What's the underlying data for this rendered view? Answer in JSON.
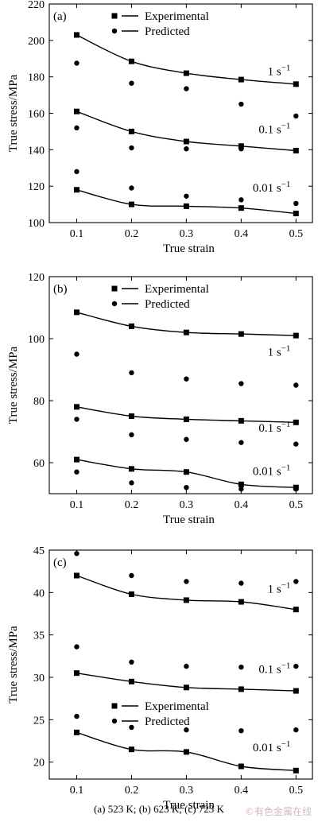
{
  "caption": "(a) 523 K; (b) 623 K; (c) 723 K",
  "watermark": "©有色金属在线",
  "colors": {
    "ink": "#000000",
    "background": "#ffffff"
  },
  "chart_data": [
    {
      "type": "line",
      "panel_label": "(a)",
      "xlabel": "True strain",
      "ylabel": "True stress/MPa",
      "x": [
        0.1,
        0.2,
        0.3,
        0.4,
        0.5
      ],
      "xticks": [
        "0.1",
        "0.2",
        "0.3",
        "0.4",
        "0.5"
      ],
      "xlim": [
        0.05,
        0.53
      ],
      "ylim": [
        100,
        220
      ],
      "yticks": [
        100,
        120,
        140,
        160,
        180,
        200,
        220
      ],
      "legend": {
        "placement": "top-center",
        "entries": [
          "Experimental",
          "Predicted"
        ]
      },
      "rate_labels": [
        {
          "label": "1 s",
          "sup": "−1",
          "anchor": [
            0.49,
            181
          ]
        },
        {
          "label": "0.1 s",
          "sup": "−1",
          "anchor": [
            0.49,
            149
          ]
        },
        {
          "label": "0.01 s",
          "sup": "−1",
          "anchor": [
            0.49,
            117
          ]
        }
      ],
      "groups": [
        {
          "rate": "1 s−1",
          "experimental": [
            203,
            188.5,
            182,
            178.5,
            176
          ],
          "predicted": [
            187.5,
            176.5,
            173.5,
            165,
            158.5
          ]
        },
        {
          "rate": "0.1 s−1",
          "experimental": [
            161,
            150,
            144.5,
            142,
            139.5
          ],
          "predicted": [
            152,
            141,
            140.5,
            140.5,
            139.5
          ]
        },
        {
          "rate": "0.01 s−1",
          "experimental": [
            118,
            110,
            109,
            108,
            105
          ],
          "predicted": [
            128,
            119,
            114.5,
            112.5,
            110.5
          ]
        }
      ]
    },
    {
      "type": "line",
      "panel_label": "(b)",
      "xlabel": "True strain",
      "ylabel": "True stress/MPa",
      "x": [
        0.1,
        0.2,
        0.3,
        0.4,
        0.5
      ],
      "xticks": [
        "0.1",
        "0.2",
        "0.3",
        "0.4",
        "0.5"
      ],
      "xlim": [
        0.05,
        0.53
      ],
      "ylim": [
        50,
        120
      ],
      "yticks": [
        60,
        80,
        100,
        120
      ],
      "legend": {
        "placement": "top-center",
        "entries": [
          "Experimental",
          "Predicted"
        ]
      },
      "rate_labels": [
        {
          "label": "1 s",
          "sup": "−1",
          "anchor": [
            0.49,
            94.5
          ]
        },
        {
          "label": "0.1 s",
          "sup": "−1",
          "anchor": [
            0.49,
            70
          ]
        },
        {
          "label": "0.01 s",
          "sup": "−1",
          "anchor": [
            0.49,
            56
          ]
        }
      ],
      "groups": [
        {
          "rate": "1 s−1",
          "experimental": [
            108.5,
            104,
            102,
            101.5,
            101
          ],
          "predicted": [
            95,
            89,
            87,
            85.5,
            85
          ]
        },
        {
          "rate": "0.1 s−1",
          "experimental": [
            78,
            75,
            74,
            73.5,
            73
          ],
          "predicted": [
            74,
            69,
            67.5,
            66.5,
            66
          ]
        },
        {
          "rate": "0.01 s−1",
          "experimental": [
            61,
            58,
            57,
            53,
            52
          ],
          "predicted": [
            57,
            53.5,
            52,
            51.5,
            51.5
          ]
        }
      ]
    },
    {
      "type": "line",
      "panel_label": "(c)",
      "xlabel": "True strain",
      "ylabel": "True stress/MPa",
      "x": [
        0.1,
        0.2,
        0.3,
        0.4,
        0.5
      ],
      "xticks": [
        "0.1",
        "0.2",
        "0.3",
        "0.4",
        "0.5"
      ],
      "xlim": [
        0.05,
        0.53
      ],
      "ylim": [
        18,
        45
      ],
      "yticks": [
        20,
        25,
        30,
        35,
        40,
        45
      ],
      "legend": {
        "placement": "bottom-center",
        "entries": [
          "Experimental",
          "Predicted"
        ]
      },
      "rate_labels": [
        {
          "label": "1 s",
          "sup": "−1",
          "anchor": [
            0.49,
            40
          ]
        },
        {
          "label": "0.1 s",
          "sup": "−1",
          "anchor": [
            0.49,
            30.5
          ]
        },
        {
          "label": "0.01 s",
          "sup": "−1",
          "anchor": [
            0.49,
            21.3
          ]
        }
      ],
      "groups": [
        {
          "rate": "1 s−1",
          "experimental": [
            42,
            39.8,
            39.1,
            38.9,
            38
          ],
          "predicted": [
            44.6,
            42,
            41.3,
            41.1,
            41.3
          ]
        },
        {
          "rate": "0.1 s−1",
          "experimental": [
            30.5,
            29.5,
            28.8,
            28.6,
            28.4
          ],
          "predicted": [
            33.6,
            31.8,
            31.3,
            31.2,
            31.3
          ]
        },
        {
          "rate": "0.01 s−1",
          "experimental": [
            23.5,
            21.5,
            21.2,
            19.5,
            19
          ],
          "predicted": [
            25.4,
            24.1,
            23.8,
            23.7,
            23.8
          ]
        }
      ]
    }
  ]
}
